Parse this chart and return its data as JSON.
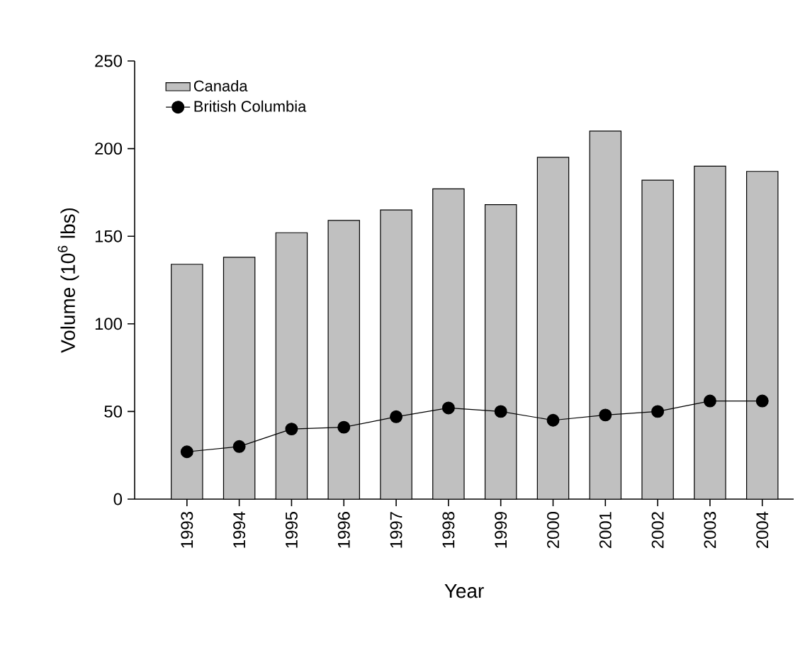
{
  "chart_data": {
    "type": "bar",
    "xlabel": "Year",
    "ylabel": "Volume (10$^{6}$ lbs)",
    "categories": [
      "1993",
      "1994",
      "1995",
      "1996",
      "1997",
      "1998",
      "1999",
      "2000",
      "2001",
      "2002",
      "2003",
      "2004"
    ],
    "series": [
      {
        "name": "Canada",
        "color": "#c0c0c0",
        "values": [
          134,
          138,
          152,
          159,
          165,
          177,
          168,
          195,
          210,
          182,
          190,
          187
        ]
      },
      {
        "name": "British Columbia",
        "type": "line",
        "color": "#000000",
        "marker": "circle",
        "values": [
          27,
          30,
          40,
          41,
          47,
          52,
          50,
          45,
          48,
          50,
          56,
          56
        ]
      }
    ],
    "ylim": [
      0,
      250
    ],
    "yticks": [
      0,
      50,
      100,
      150,
      200,
      250
    ],
    "grid": false,
    "legend": "top left"
  }
}
